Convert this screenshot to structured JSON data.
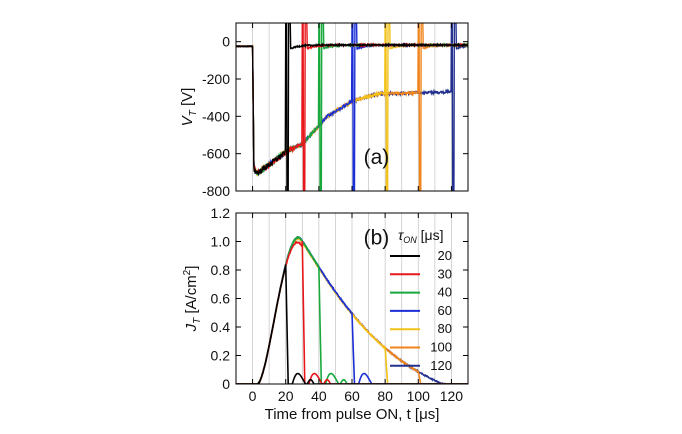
{
  "figure": {
    "series": [
      {
        "name": "20",
        "color": "#000000",
        "tau_on": 20
      },
      {
        "name": "30",
        "color": "#e8161a",
        "tau_on": 30
      },
      {
        "name": "40",
        "color": "#18a83c",
        "tau_on": 40
      },
      {
        "name": "60",
        "color": "#1b2fd6",
        "tau_on": 60
      },
      {
        "name": "80",
        "color": "#f2c21a",
        "tau_on": 80
      },
      {
        "name": "100",
        "color": "#f0851d",
        "tau_on": 100
      },
      {
        "name": "120",
        "color": "#24318f",
        "tau_on": 120
      }
    ]
  },
  "chart_data": [
    {
      "type": "line",
      "panel_label": "(a)",
      "ylabel_main": "V",
      "ylabel_sub": "T",
      "ylabel_unit": " [V]",
      "xlim": [
        -10,
        130
      ],
      "ylim": [
        -800,
        100
      ],
      "xticks": [
        0,
        20,
        40,
        60,
        80,
        100,
        120
      ],
      "yticks": [
        0,
        -200,
        -400,
        -600,
        -800
      ],
      "ytick_labels": [
        "0",
        "-200",
        "-400",
        "-600",
        "-800"
      ],
      "gridlines_x": [
        0,
        10,
        20,
        30,
        40,
        50,
        60,
        70,
        80,
        90,
        100,
        110,
        120
      ],
      "description_of_series": "Voltage drops to about -700 V at pulse ON (t=0), rises to about -570 V near t=20 us, then each trace returns to ~0 V at t = tau_on with a spike; longer pulses pass through ~-270 V plateau"
    },
    {
      "type": "line",
      "panel_label": "(b)",
      "ylabel_main": "J",
      "ylabel_sub": "T",
      "ylabel_unit": " [A/cm",
      "ylabel_sup": "2",
      "ylabel_close": "]",
      "xlabel": "Time from pulse ON, t [μs]",
      "xlim": [
        -10,
        130
      ],
      "ylim": [
        0,
        1.2
      ],
      "xticks": [
        0,
        20,
        40,
        60,
        80,
        100,
        120
      ],
      "xtick_labels": [
        "0",
        "20",
        "40",
        "60",
        "80",
        "100",
        "120"
      ],
      "yticks": [
        0,
        0.2,
        0.4,
        0.6,
        0.8,
        1.0,
        1.2
      ],
      "ytick_labels": [
        "0",
        "0.2",
        "0.4",
        "0.6",
        "0.8",
        "1.0",
        "1.2"
      ],
      "legend_title_main": "τ",
      "legend_title_sub": "ON",
      "legend_title_unit": " [μs]",
      "legend_placement": "right",
      "gridlines_x": [
        0,
        10,
        20,
        30,
        40,
        50,
        60,
        70,
        80,
        90,
        100,
        110,
        120
      ],
      "description_of_series": "Current density rises from 0 at t~3 us to peak ~1.02 A/cm2 at t~29 us, then decays to 0 by ~115 us; shorter pulses cut off at t = tau_on with small after-pulses"
    }
  ]
}
